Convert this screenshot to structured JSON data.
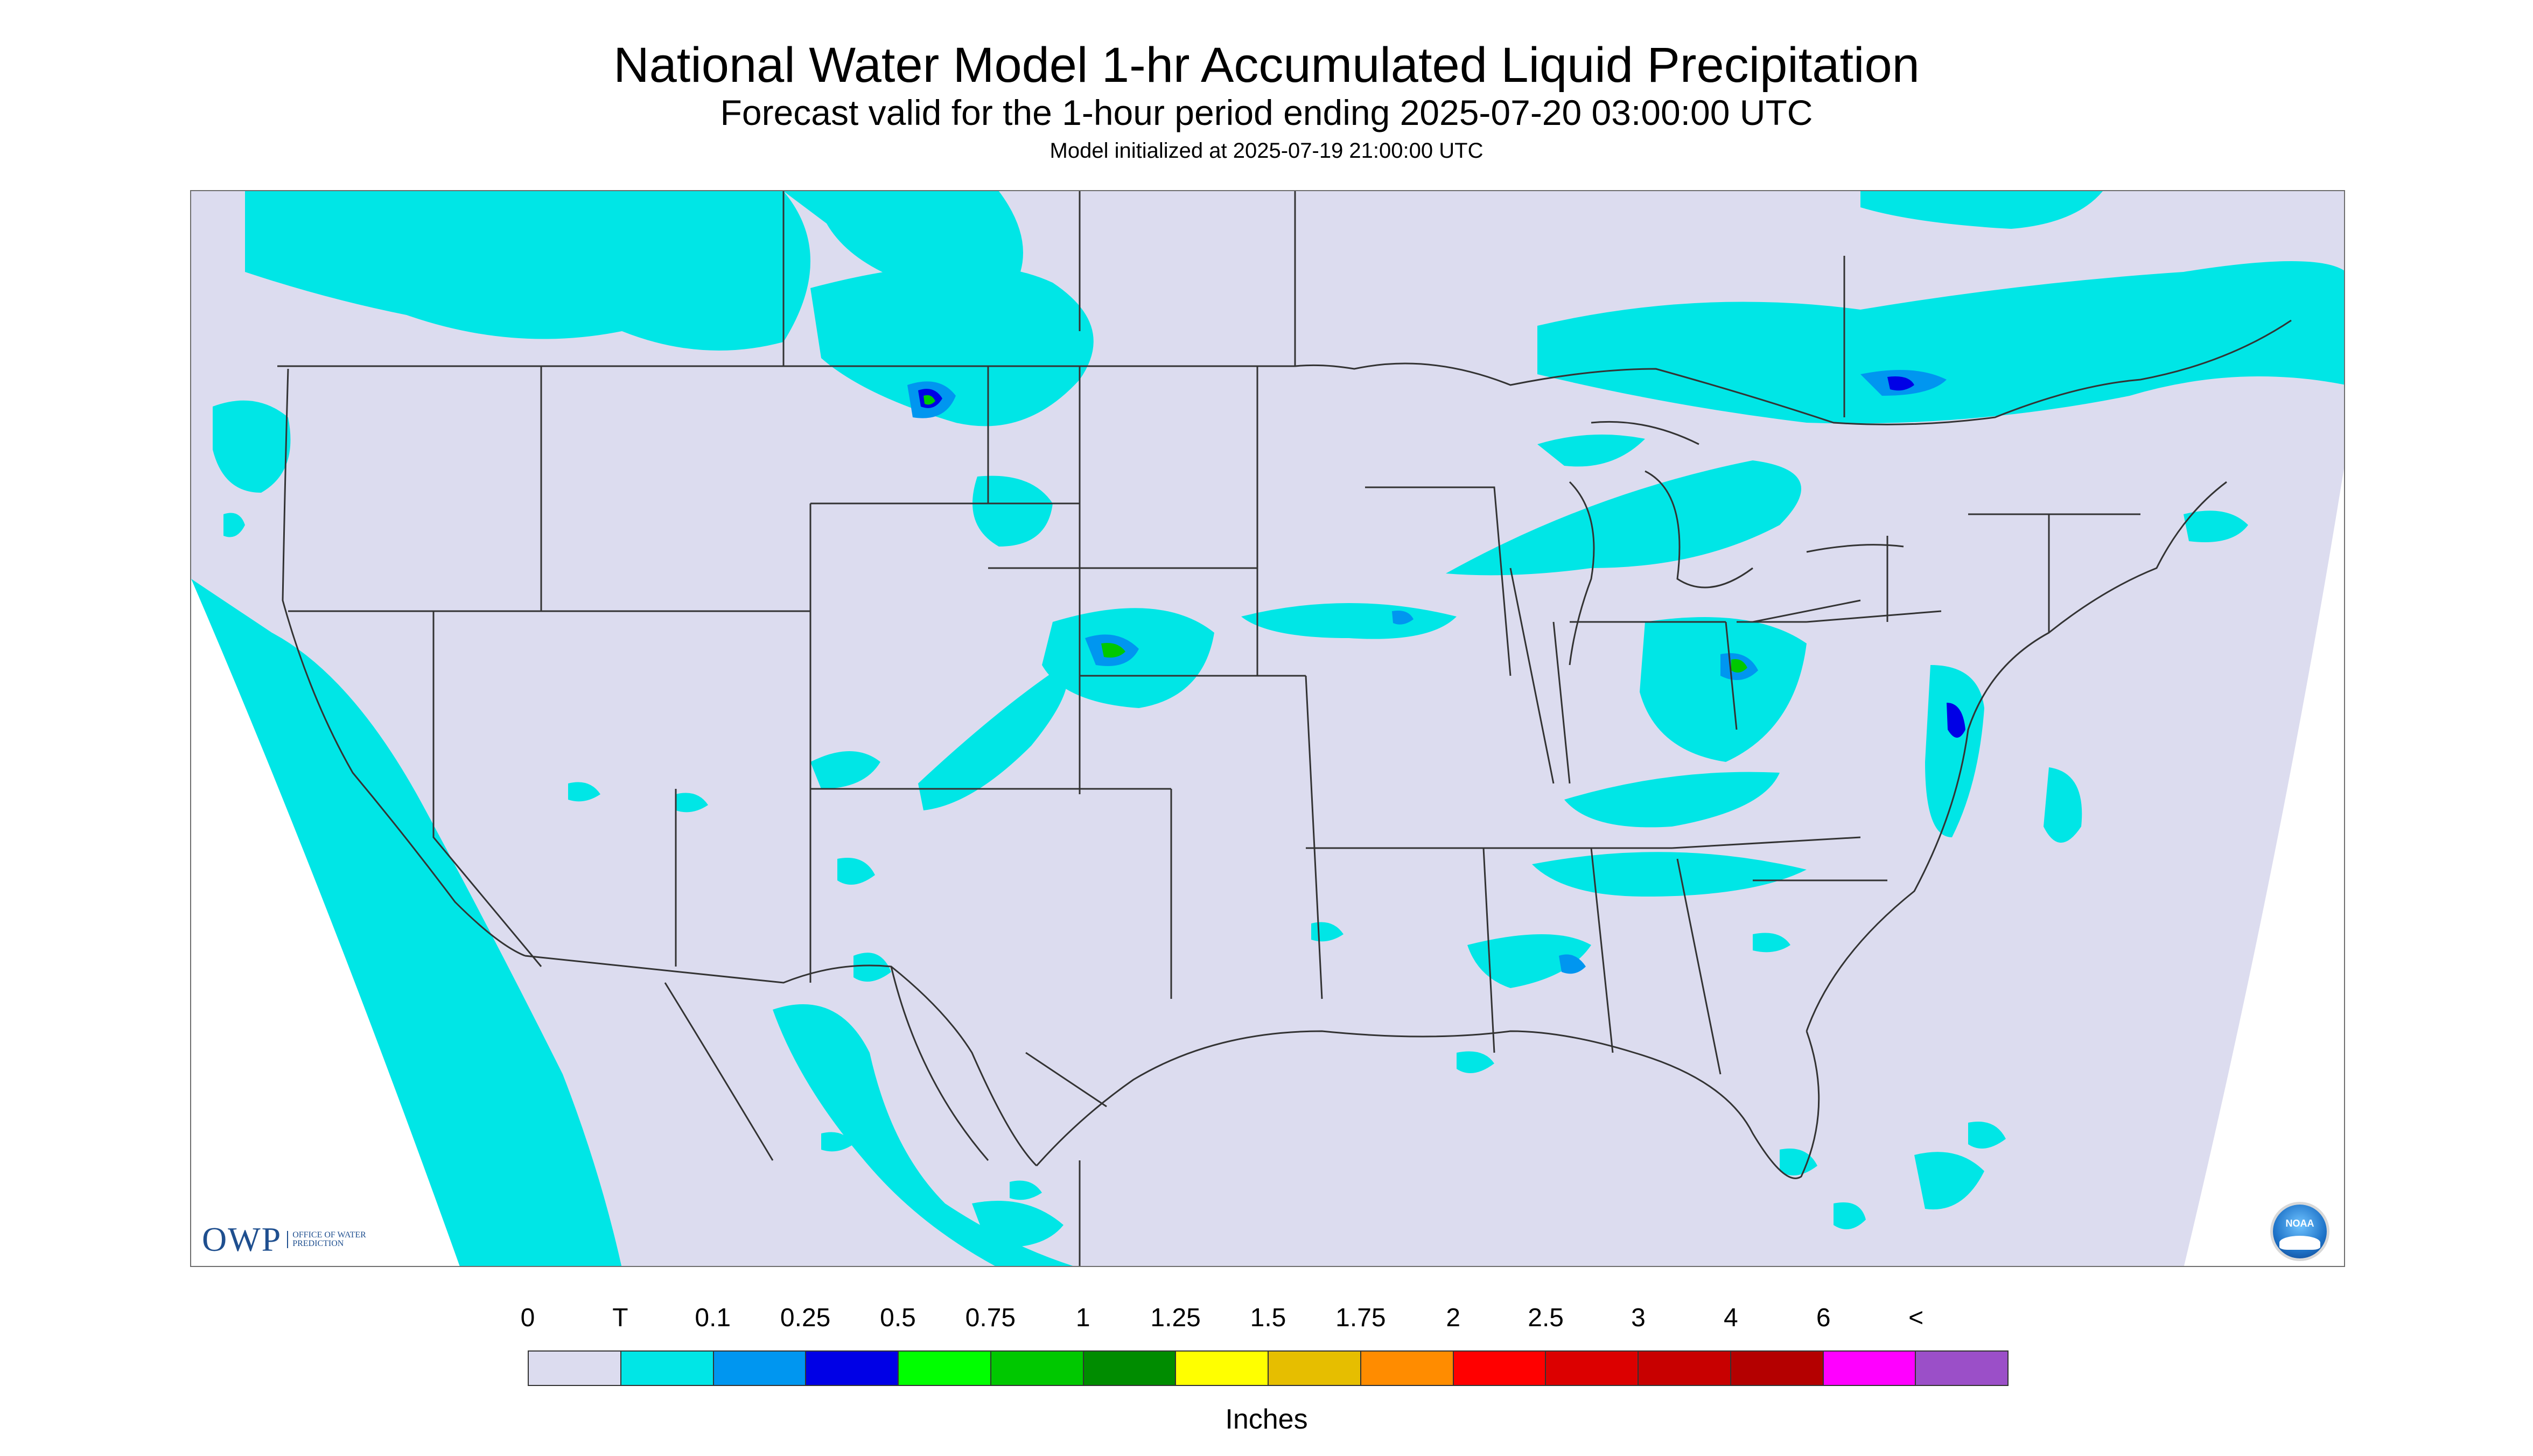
{
  "header": {
    "title": "National Water Model 1-hr Accumulated Liquid Precipitation",
    "subtitle": "Forecast valid for the 1-hour period ending 2025-07-20 03:00:00 UTC",
    "init": "Model initialized at 2025-07-19 21:00:00 UTC"
  },
  "logos": {
    "owp_text": "OWP",
    "owp_subtext": "OFFICE OF WATER PREDICTION",
    "noaa_text": "NOAA"
  },
  "colors": {
    "background_domain": "#dcdcef",
    "outside_domain": "#ffffff",
    "boundaries": "#333333",
    "trace": "#00e6e6",
    "light_blue": "#0096f0",
    "blue": "#0000e6",
    "green": "#00c800"
  },
  "legend": {
    "labels": [
      "0",
      "T",
      "0.1",
      "0.25",
      "0.5",
      "0.75",
      "1",
      "1.25",
      "1.5",
      "1.75",
      "2",
      "2.5",
      "3",
      "4",
      "6",
      "<"
    ],
    "colors": [
      "#dcdcef",
      "#00e6e6",
      "#0096f0",
      "#0000e6",
      "#00ff00",
      "#00c800",
      "#008c00",
      "#ffff00",
      "#e6be00",
      "#ff8c00",
      "#ff0000",
      "#dc0000",
      "#c80000",
      "#b40000",
      "#ff00ff",
      "#9b4fc8"
    ],
    "units": "Inches"
  }
}
